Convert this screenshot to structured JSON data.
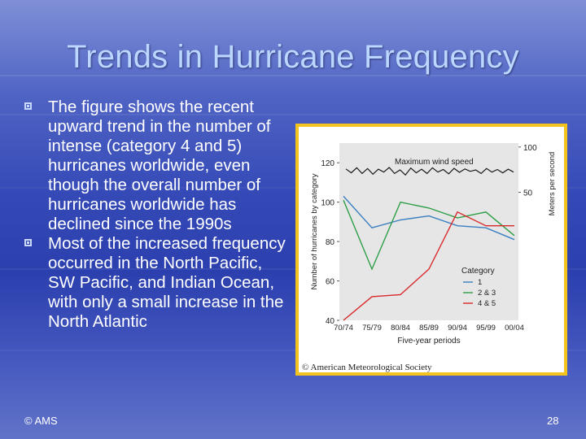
{
  "slide": {
    "title": "Trends in Hurricane Frequency",
    "bullets": [
      "The figure shows the recent upward trend in the number of intense (category 4 and 5) hurricanes worldwide, even though the overall number of hurricanes worldwide has declined since the 1990s",
      "Most of the increased frequency occurred in the North Pacific, SW Pacific, and Indian Ocean, with only a small increase in the North Atlantic"
    ],
    "footer_left": "© AMS",
    "page_number": "28",
    "figure_copyright": "© American Meteorological Society"
  },
  "colors": {
    "frame": "#f2c21e",
    "series_1": "#3a7fc1",
    "series_23": "#2e9f48",
    "series_45": "#d8292b",
    "wind": "#1a1a1a"
  },
  "chart_data": {
    "type": "line",
    "xlabel": "Five-year periods",
    "ylabel": "Number of hurricanes by category",
    "y2label": "Meters per second",
    "categories": [
      "70/74",
      "75/79",
      "80/84",
      "85/89",
      "90/94",
      "95/99",
      "00/04"
    ],
    "ylim": [
      40,
      130
    ],
    "yticks": [
      40,
      60,
      80,
      100,
      120
    ],
    "y2ticks": [
      "50",
      "100"
    ],
    "series": [
      {
        "name": "1",
        "values": [
          103,
          87,
          91,
          93,
          88,
          87,
          81
        ]
      },
      {
        "name": "2 & 3",
        "values": [
          101,
          66,
          100,
          97,
          92,
          95,
          83
        ]
      },
      {
        "name": "4 & 5",
        "values": [
          40,
          52,
          53,
          66,
          95,
          88,
          88
        ]
      }
    ],
    "annotation": "Maximum wind speed",
    "wind_relative": [
      0.62,
      0.35,
      0.7,
      0.3,
      0.65,
      0.25,
      0.6,
      0.4,
      0.72,
      0.3,
      0.55,
      0.2,
      0.68,
      0.35,
      0.6,
      0.3,
      0.7,
      0.4,
      0.58,
      0.28,
      0.66,
      0.38,
      0.62,
      0.45,
      0.55,
      0.3,
      0.65,
      0.4,
      0.58,
      0.35,
      0.6,
      0.4
    ],
    "legend_title": "Category",
    "legend_position": "bottom-right"
  }
}
